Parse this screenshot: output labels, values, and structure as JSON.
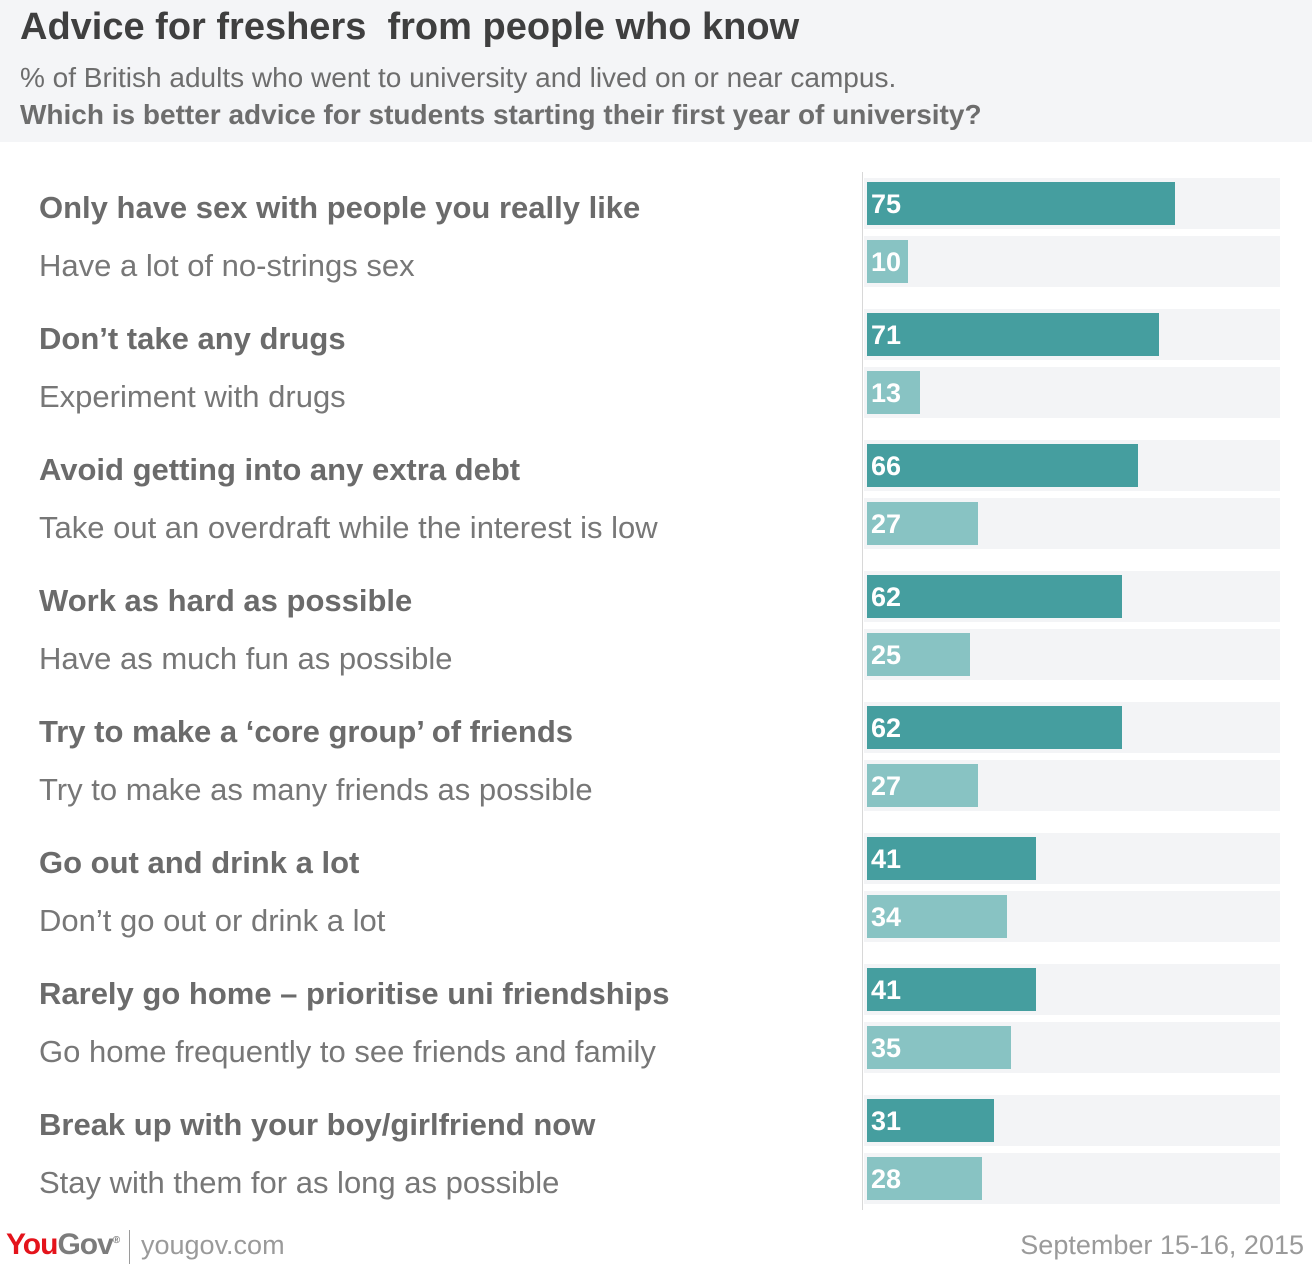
{
  "title": "Advice for freshers  from people who know",
  "subtitle": "% of British adults who went to university and lived on or near campus.",
  "question": "Which is better advice for students starting their first year of university?",
  "footer": {
    "logo_you": "You",
    "logo_gov": "Gov",
    "logo_reg": "®",
    "url": "yougov.com",
    "date": "September 15-16, 2015"
  },
  "colors": {
    "primary_bar": "#459e9f",
    "secondary_bar": "#88c3c3",
    "track": "#f3f4f6"
  },
  "chart_data": {
    "type": "bar",
    "orientation": "horizontal",
    "xlim": [
      0,
      100
    ],
    "pairs": [
      {
        "a_label": "Only have sex with people you really like",
        "a_value": 75,
        "b_label": "Have a lot of no-strings sex",
        "b_value": 10
      },
      {
        "a_label": "Don’t take any drugs",
        "a_value": 71,
        "b_label": "Experiment with drugs",
        "b_value": 13
      },
      {
        "a_label": "Avoid getting into any extra debt",
        "a_value": 66,
        "b_label": "Take out an overdraft while the interest is low",
        "b_value": 27
      },
      {
        "a_label": "Work as hard as possible",
        "a_value": 62,
        "b_label": "Have as much fun as possible",
        "b_value": 25
      },
      {
        "a_label": "Try to make a ‘core group’ of friends",
        "a_value": 62,
        "b_label": "Try to make as many friends as possible",
        "b_value": 27
      },
      {
        "a_label": "Go out and drink a lot",
        "a_value": 41,
        "b_label": "Don’t go out or drink a lot",
        "b_value": 34
      },
      {
        "a_label": "Rarely go home – prioritise uni friendships",
        "a_value": 41,
        "b_label": "Go home frequently to see friends and family",
        "b_value": 35
      },
      {
        "a_label": "Break up with your boy/girlfriend now",
        "a_value": 31,
        "b_label": "Stay with them for as long as possible",
        "b_value": 28
      }
    ]
  }
}
